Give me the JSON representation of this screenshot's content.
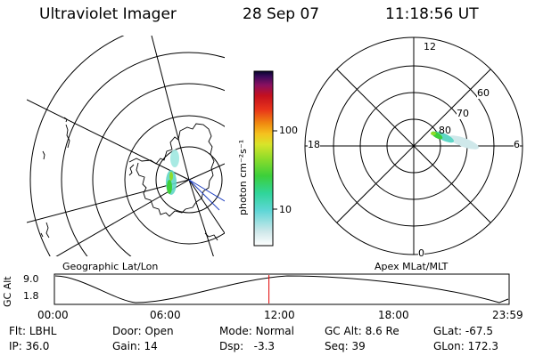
{
  "header": {
    "instrument": "Ultraviolet Imager",
    "date": "28 Sep 07",
    "time": "11:18:56 UT"
  },
  "left_panel": {
    "label": "Geographic Lat/Lon"
  },
  "right_panel": {
    "label": "Apex MLat/MLT",
    "mlt_labels": {
      "top": "12",
      "left": "18",
      "right": "6",
      "bottom": "0"
    },
    "lat_labels": [
      "60",
      "70",
      "80"
    ]
  },
  "colorbar": {
    "unit_label": "photon cm⁻²s⁻¹",
    "ticks": [
      "100",
      "10"
    ],
    "colors": [
      "#ffffff",
      "#cfe8ea",
      "#5fd6d6",
      "#30d59a",
      "#3ccf3a",
      "#8fdc2a",
      "#d8e42a",
      "#f5c21e",
      "#f08a10",
      "#e8341a",
      "#c4101e",
      "#8a1060",
      "#3a0a5a",
      "#05052a"
    ]
  },
  "timeline": {
    "axis_label": "GC Alt",
    "y_ticks": [
      "9.0",
      "1.8"
    ],
    "x_ticks": [
      "00:00",
      "06:00",
      "12:00",
      "18:00",
      "23:59"
    ],
    "marker_hours": 11.315,
    "marker_color": "#e00000"
  },
  "status": {
    "row1": [
      {
        "key": "Flt:",
        "value": "LBHL"
      },
      {
        "key": "Door:",
        "value": "Open"
      },
      {
        "key": "Mode:",
        "value": "Normal"
      },
      {
        "key": "GC Alt:",
        "value": "8.6 Re"
      },
      {
        "key": "GLat:",
        "value": "-67.5"
      }
    ],
    "row2": [
      {
        "key": "IP:",
        "value": "36.0"
      },
      {
        "key": "Gain:",
        "value": "14"
      },
      {
        "key": "Dsp:",
        "value": "-3.3"
      },
      {
        "key": "Seq:",
        "value": "39"
      },
      {
        "key": "GLon:",
        "value": "172.3"
      }
    ]
  }
}
